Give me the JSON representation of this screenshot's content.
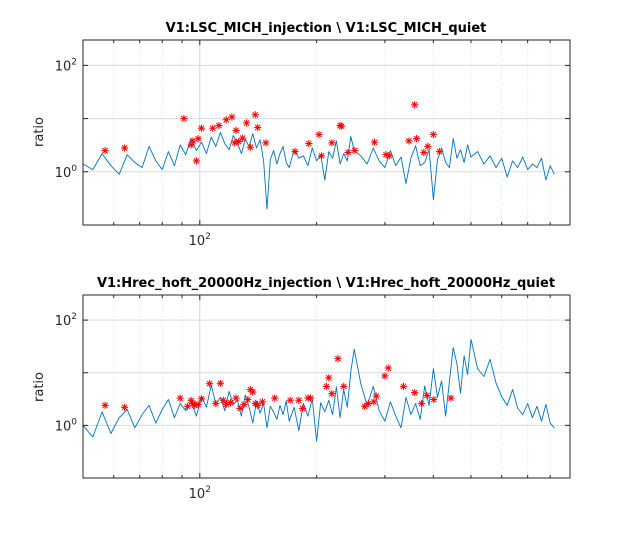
{
  "chart_data": [
    {
      "type": "line",
      "title": "V1:LSC_MICH_injection \\ V1:LSC_MICH_quiet",
      "xlabel": "",
      "ylabel": "ratio",
      "xscale": "log",
      "yscale": "log",
      "xlim": [
        50,
        900
      ],
      "ylim": [
        0.1,
        300
      ],
      "x_tick_labels": [
        {
          "base": "10",
          "exp": "2",
          "value": 100
        }
      ],
      "y_tick_labels": [
        {
          "base": "10",
          "exp": "0",
          "value": 1
        },
        {
          "base": "10",
          "exp": "2",
          "value": 100
        }
      ],
      "grid": true,
      "series": [
        {
          "style": "line",
          "color": "#0072BD",
          "x": [
            50,
            53,
            56,
            59,
            62,
            65,
            68,
            71,
            74,
            77,
            80,
            83,
            86,
            89,
            92,
            95,
            98,
            101,
            104,
            107,
            110,
            113,
            116,
            119,
            122,
            125,
            128,
            131,
            134,
            137,
            140,
            143,
            146,
            149,
            152,
            155,
            158,
            161,
            164,
            167,
            170,
            175,
            180,
            185,
            190,
            195,
            200,
            205,
            210,
            215,
            220,
            225,
            230,
            235,
            240,
            245,
            250,
            260,
            270,
            280,
            290,
            300,
            310,
            320,
            330,
            340,
            350,
            360,
            370,
            380,
            390,
            400,
            410,
            420,
            430,
            440,
            450,
            460,
            470,
            480,
            490,
            500,
            520,
            540,
            560,
            580,
            600,
            620,
            640,
            660,
            680,
            700,
            720,
            740,
            760,
            780,
            800,
            820
          ],
          "y": [
            1.4,
            1.1,
            2.2,
            1.3,
            0.9,
            2.1,
            1.5,
            1.2,
            3.0,
            1.6,
            1.1,
            2.4,
            1.3,
            3.2,
            2.1,
            4.2,
            2.5,
            3.6,
            2.2,
            4.5,
            3.0,
            5.5,
            3.4,
            2.6,
            4.8,
            3.5,
            2.2,
            4.1,
            3.0,
            5.2,
            2.8,
            4.0,
            1.6,
            0.2,
            1.7,
            2.5,
            1.4,
            2.2,
            3.0,
            1.5,
            1.2,
            2.6,
            1.8,
            2.0,
            1.3,
            2.8,
            1.6,
            2.1,
            0.7,
            2.4,
            1.8,
            3.8,
            1.4,
            2.2,
            1.6,
            4.6,
            2.5,
            2.0,
            1.4,
            2.8,
            1.6,
            1.2,
            2.5,
            1.3,
            1.9,
            0.6,
            1.8,
            3.1,
            1.3,
            1.5,
            2.6,
            0.3,
            1.7,
            2.8,
            1.5,
            1.2,
            4.2,
            1.8,
            2.6,
            1.5,
            3.2,
            1.9,
            2.4,
            1.4,
            2.0,
            1.2,
            1.8,
            0.8,
            1.6,
            1.2,
            1.9,
            1.1,
            1.4,
            1.2,
            1.8,
            0.7,
            1.3,
            0.9
          ]
        },
        {
          "style": "markers",
          "marker": "*",
          "color": "#FF0000",
          "x": [
            57,
            64,
            91,
            95,
            96,
            98,
            99,
            101,
            108,
            112,
            117,
            121,
            123,
            124,
            126,
            129,
            132,
            135,
            139,
            141,
            148,
            176,
            191,
            203,
            206,
            219,
            230,
            232,
            241,
            251,
            282,
            302,
            308,
            346,
            358,
            362,
            378,
            387,
            400,
            415
          ],
          "y": [
            2.5,
            2.8,
            10.0,
            3.2,
            3.8,
            1.6,
            4.2,
            6.6,
            6.6,
            7.4,
            9.5,
            10.7,
            3.5,
            6.0,
            3.7,
            4.3,
            8.3,
            2.9,
            11.8,
            6.8,
            3.5,
            2.4,
            3.4,
            5.0,
            2.0,
            3.5,
            7.4,
            7.2,
            2.3,
            2.5,
            3.6,
            2.1,
            2.0,
            3.8,
            18.2,
            4.2,
            2.3,
            3.0,
            5.0,
            2.4
          ]
        }
      ]
    },
    {
      "type": "line",
      "title": "V1:Hrec_hoft_20000Hz_injection \\ V1:Hrec_hoft_20000Hz_quiet",
      "xlabel": "",
      "ylabel": "ratio",
      "xscale": "log",
      "yscale": "log",
      "xlim": [
        50,
        900
      ],
      "ylim": [
        0.1,
        300
      ],
      "x_tick_labels": [
        {
          "base": "10",
          "exp": "2",
          "value": 100
        }
      ],
      "y_tick_labels": [
        {
          "base": "10",
          "exp": "0",
          "value": 1
        },
        {
          "base": "10",
          "exp": "2",
          "value": 100
        }
      ],
      "grid": true,
      "series": [
        {
          "style": "line",
          "color": "#0072BD",
          "x": [
            50,
            53,
            56,
            59,
            62,
            65,
            68,
            71,
            74,
            77,
            80,
            83,
            86,
            89,
            92,
            95,
            98,
            101,
            104,
            107,
            110,
            113,
            116,
            119,
            122,
            125,
            128,
            131,
            134,
            137,
            140,
            143,
            146,
            149,
            152,
            155,
            158,
            161,
            164,
            167,
            170,
            175,
            180,
            185,
            190,
            195,
            200,
            205,
            210,
            215,
            220,
            225,
            230,
            235,
            240,
            245,
            250,
            260,
            270,
            280,
            290,
            300,
            310,
            320,
            330,
            340,
            350,
            360,
            370,
            380,
            390,
            400,
            410,
            420,
            430,
            440,
            450,
            460,
            470,
            480,
            490,
            500,
            520,
            540,
            560,
            580,
            600,
            620,
            640,
            660,
            680,
            700,
            720,
            740,
            760,
            780,
            800,
            820
          ],
          "y": [
            1.0,
            0.6,
            1.8,
            0.7,
            1.4,
            2.0,
            0.9,
            1.6,
            2.4,
            1.1,
            2.0,
            3.1,
            1.4,
            2.6,
            1.9,
            2.8,
            1.5,
            3.6,
            2.2,
            5.8,
            2.6,
            3.4,
            1.9,
            4.4,
            2.5,
            3.0,
            1.5,
            3.8,
            2.2,
            1.1,
            2.9,
            1.7,
            2.6,
            0.9,
            2.3,
            1.8,
            1.3,
            2.4,
            1.6,
            2.9,
            1.2,
            2.2,
            0.8,
            2.6,
            1.5,
            3.2,
            0.5,
            2.7,
            1.8,
            3.0,
            1.6,
            5.4,
            1.4,
            4.8,
            2.2,
            10.5,
            28.0,
            6.2,
            2.4,
            5.5,
            1.9,
            1.2,
            2.8,
            1.5,
            0.9,
            3.4,
            1.6,
            2.6,
            1.3,
            5.6,
            2.4,
            12.0,
            3.4,
            7.0,
            1.5,
            6.8,
            30.0,
            15.0,
            4.1,
            21.0,
            9.2,
            43.0,
            12.0,
            8.5,
            18.0,
            6.4,
            3.5,
            2.4,
            4.8,
            2.1,
            1.6,
            2.6,
            1.4,
            2.3,
            1.2,
            2.5,
            1.1,
            0.9
          ]
        },
        {
          "style": "markers",
          "marker": "*",
          "color": "#FF0000",
          "x": [
            57,
            64,
            89,
            93,
            95,
            96,
            97,
            99,
            101,
            106,
            110,
            113,
            115,
            117,
            120,
            124,
            127,
            130,
            133,
            135,
            137,
            139,
            141,
            145,
            156,
            171,
            180,
            184,
            190,
            193,
            212,
            215,
            219,
            227,
            235,
            266,
            272,
            281,
            285,
            300,
            306,
            335,
            358,
            373,
            385,
            401,
            444
          ],
          "y": [
            2.4,
            2.2,
            3.3,
            2.3,
            3.0,
            2.6,
            2.4,
            2.5,
            3.2,
            6.2,
            2.6,
            6.3,
            3.0,
            2.5,
            2.7,
            3.3,
            2.1,
            2.5,
            3.1,
            4.8,
            4.3,
            2.6,
            2.4,
            2.8,
            3.3,
            3.0,
            3.0,
            2.1,
            3.3,
            3.3,
            5.5,
            8.0,
            4.0,
            18.5,
            5.5,
            2.3,
            2.6,
            2.8,
            3.6,
            8.7,
            12.3,
            5.5,
            4.2,
            2.6,
            3.7,
            3.1,
            3.3
          ]
        }
      ]
    }
  ]
}
